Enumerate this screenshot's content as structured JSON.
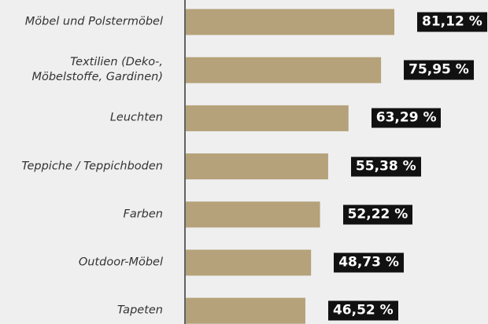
{
  "chart_data": {
    "type": "bar",
    "orientation": "horizontal",
    "categories": [
      "Möbel und Polstermöbel",
      "Textilien (Deko-,\nMöbelstoffe, Gardinen)",
      "Leuchten",
      "Teppiche / Teppichboden",
      "Farben",
      "Outdoor-Möbel",
      "Tapeten"
    ],
    "values": [
      81.12,
      75.95,
      63.29,
      55.38,
      52.22,
      48.73,
      46.52
    ],
    "value_labels": [
      "81,12 %",
      "75,95 %",
      "63,29 %",
      "55,38 %",
      "52,22 %",
      "48,73 %",
      "46,52 %"
    ],
    "color": "#b5a27a"
  }
}
